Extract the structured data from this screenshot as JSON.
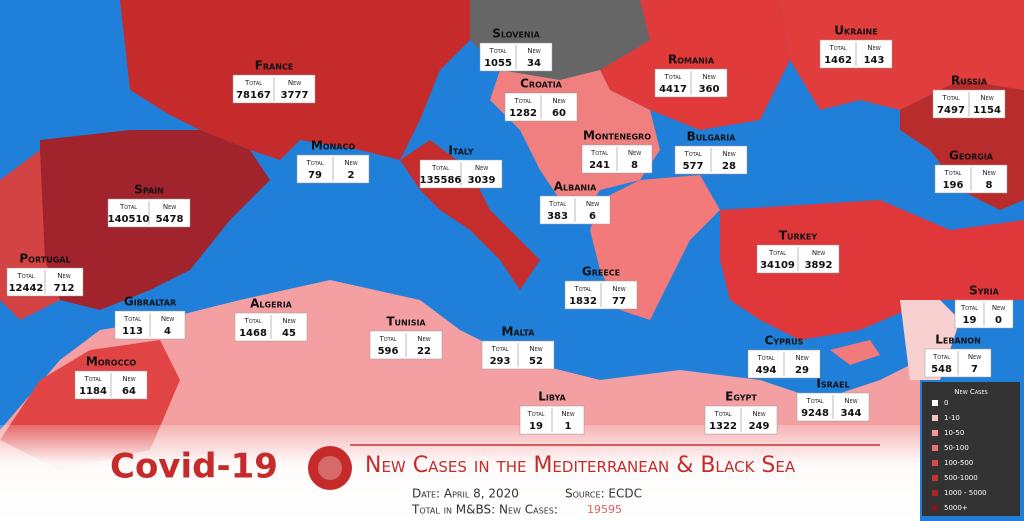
{
  "title": "Covid-19",
  "subtitle": "New Cases in the Mediterranean & Black Sea",
  "date": "Date: April 8, 2020",
  "source": "Source: ECDC",
  "total_label": "Total in M&BS: New Cases:",
  "total_value": 19595,
  "column_labels": {
    "total": "Total",
    "new": "New"
  },
  "countries": [
    {
      "name": "Slovenia",
      "total": 1055,
      "new": 34
    },
    {
      "name": "France",
      "total": 78167,
      "new": 3777
    },
    {
      "name": "Croatia",
      "total": 1282,
      "new": 60
    },
    {
      "name": "Romania",
      "total": 4417,
      "new": 360
    },
    {
      "name": "Ukraine",
      "total": 1462,
      "new": 143
    },
    {
      "name": "Russia",
      "total": 7497,
      "new": 1154
    },
    {
      "name": "Monaco",
      "total": 79,
      "new": 2
    },
    {
      "name": "Italy",
      "total": 135586,
      "new": 3039
    },
    {
      "name": "Montenegro",
      "total": 241,
      "new": 8
    },
    {
      "name": "Bulgaria",
      "total": 577,
      "new": 28
    },
    {
      "name": "Georgia",
      "total": 196,
      "new": 8
    },
    {
      "name": "Spain",
      "total": 140510,
      "new": 5478
    },
    {
      "name": "Albania",
      "total": 383,
      "new": 6
    },
    {
      "name": "Turkey",
      "total": 34109,
      "new": 3892
    },
    {
      "name": "Portugal",
      "total": 12442,
      "new": 712
    },
    {
      "name": "Gibraltar",
      "total": 113,
      "new": 4
    },
    {
      "name": "Algeria",
      "total": 1468,
      "new": 45
    },
    {
      "name": "Greece",
      "total": 1832,
      "new": 77
    },
    {
      "name": "Syria",
      "total": 19,
      "new": 0
    },
    {
      "name": "Tunisia",
      "total": 596,
      "new": 22
    },
    {
      "name": "Malta",
      "total": 293,
      "new": 52
    },
    {
      "name": "Cyprus",
      "total": 494,
      "new": 29
    },
    {
      "name": "Lebanon",
      "total": 548,
      "new": 7
    },
    {
      "name": "Morocco",
      "total": 1184,
      "new": 64
    },
    {
      "name": "Israel",
      "total": 9248,
      "new": 344
    },
    {
      "name": "Libya",
      "total": 19,
      "new": 1
    },
    {
      "name": "Egypt",
      "total": 1322,
      "new": 249
    }
  ],
  "legend": {
    "title": "New Cases",
    "items": [
      "0",
      "1-10",
      "10-50",
      "50-100",
      "100-500",
      "500-1000",
      "1000 - 5000",
      "5000+"
    ]
  }
}
